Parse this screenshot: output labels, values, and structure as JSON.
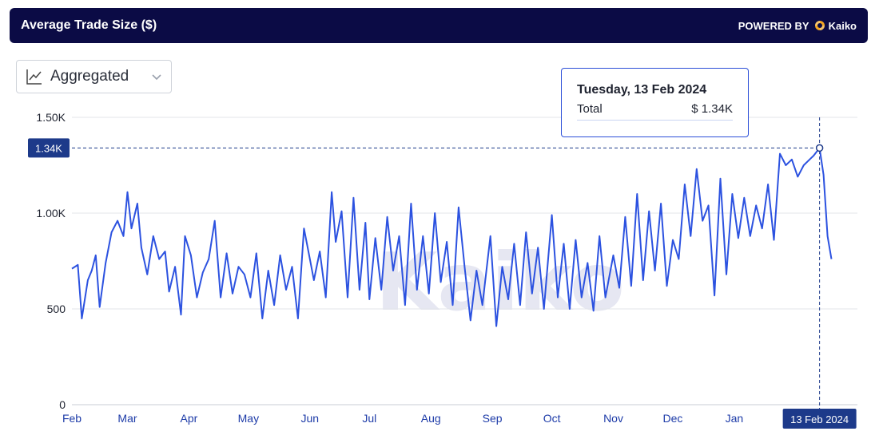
{
  "header": {
    "title": "Average Trade Size ($)",
    "powered_by": "POWERED BY",
    "brand": "Kaiko"
  },
  "selector": {
    "value": "Aggregated"
  },
  "watermark": "Kaiko",
  "tooltip": {
    "date": "Tuesday, 13 Feb 2024",
    "label": "Total",
    "value": "$ 1.34K"
  },
  "colors": {
    "line": "#2c52e0",
    "header_bg": "#0b0b45",
    "badge": "#1d3a8a"
  },
  "chart_data": {
    "type": "line",
    "title": "Average Trade Size ($)",
    "ylim": [
      0,
      1500
    ],
    "y_ticks": [
      0,
      500,
      1000,
      1500
    ],
    "y_tick_labels": [
      "0",
      "500",
      "1.00K",
      "1.50K"
    ],
    "x_ticks": [
      "Feb",
      "Mar",
      "Apr",
      "May",
      "Jun",
      "Jul",
      "Aug",
      "Sep",
      "Oct",
      "Nov",
      "Dec",
      "Jan"
    ],
    "x_range": [
      "2023-02-01",
      "2024-02-20"
    ],
    "crosshair": {
      "date": "2024-02-13",
      "value": 1340,
      "y_label": "1.34K",
      "x_label": "13 Feb 2024"
    },
    "grid": true,
    "series": [
      {
        "name": "Total",
        "points": [
          [
            "2023-02-01",
            710
          ],
          [
            "2023-02-04",
            730
          ],
          [
            "2023-02-06",
            450
          ],
          [
            "2023-02-09",
            650
          ],
          [
            "2023-02-11",
            700
          ],
          [
            "2023-02-13",
            780
          ],
          [
            "2023-02-15",
            510
          ],
          [
            "2023-02-18",
            740
          ],
          [
            "2023-02-21",
            900
          ],
          [
            "2023-02-24",
            960
          ],
          [
            "2023-02-27",
            880
          ],
          [
            "2023-03-01",
            1110
          ],
          [
            "2023-03-03",
            920
          ],
          [
            "2023-03-06",
            1050
          ],
          [
            "2023-03-08",
            820
          ],
          [
            "2023-03-11",
            680
          ],
          [
            "2023-03-14",
            880
          ],
          [
            "2023-03-17",
            760
          ],
          [
            "2023-03-20",
            800
          ],
          [
            "2023-03-22",
            590
          ],
          [
            "2023-03-25",
            720
          ],
          [
            "2023-03-28",
            470
          ],
          [
            "2023-03-30",
            880
          ],
          [
            "2023-04-02",
            780
          ],
          [
            "2023-04-05",
            560
          ],
          [
            "2023-04-08",
            690
          ],
          [
            "2023-04-11",
            760
          ],
          [
            "2023-04-14",
            960
          ],
          [
            "2023-04-17",
            560
          ],
          [
            "2023-04-20",
            790
          ],
          [
            "2023-04-23",
            580
          ],
          [
            "2023-04-26",
            720
          ],
          [
            "2023-04-29",
            680
          ],
          [
            "2023-05-02",
            560
          ],
          [
            "2023-05-05",
            790
          ],
          [
            "2023-05-08",
            450
          ],
          [
            "2023-05-11",
            700
          ],
          [
            "2023-05-14",
            520
          ],
          [
            "2023-05-17",
            780
          ],
          [
            "2023-05-20",
            600
          ],
          [
            "2023-05-23",
            720
          ],
          [
            "2023-05-26",
            450
          ],
          [
            "2023-05-29",
            920
          ],
          [
            "2023-06-01",
            760
          ],
          [
            "2023-06-03",
            650
          ],
          [
            "2023-06-06",
            800
          ],
          [
            "2023-06-09",
            560
          ],
          [
            "2023-06-12",
            1110
          ],
          [
            "2023-06-14",
            850
          ],
          [
            "2023-06-17",
            1010
          ],
          [
            "2023-06-20",
            560
          ],
          [
            "2023-06-23",
            1080
          ],
          [
            "2023-06-26",
            600
          ],
          [
            "2023-06-29",
            950
          ],
          [
            "2023-07-01",
            550
          ],
          [
            "2023-07-04",
            870
          ],
          [
            "2023-07-07",
            600
          ],
          [
            "2023-07-10",
            980
          ],
          [
            "2023-07-13",
            700
          ],
          [
            "2023-07-16",
            880
          ],
          [
            "2023-07-19",
            520
          ],
          [
            "2023-07-22",
            1050
          ],
          [
            "2023-07-25",
            600
          ],
          [
            "2023-07-28",
            880
          ],
          [
            "2023-07-31",
            580
          ],
          [
            "2023-08-03",
            1000
          ],
          [
            "2023-08-06",
            640
          ],
          [
            "2023-08-09",
            850
          ],
          [
            "2023-08-12",
            520
          ],
          [
            "2023-08-15",
            1030
          ],
          [
            "2023-08-18",
            720
          ],
          [
            "2023-08-21",
            440
          ],
          [
            "2023-08-24",
            700
          ],
          [
            "2023-08-27",
            520
          ],
          [
            "2023-08-31",
            880
          ],
          [
            "2023-09-03",
            410
          ],
          [
            "2023-09-06",
            720
          ],
          [
            "2023-09-09",
            550
          ],
          [
            "2023-09-12",
            840
          ],
          [
            "2023-09-15",
            520
          ],
          [
            "2023-09-18",
            900
          ],
          [
            "2023-09-21",
            580
          ],
          [
            "2023-09-24",
            820
          ],
          [
            "2023-09-27",
            500
          ],
          [
            "2023-10-01",
            990
          ],
          [
            "2023-10-04",
            560
          ],
          [
            "2023-10-07",
            840
          ],
          [
            "2023-10-10",
            500
          ],
          [
            "2023-10-13",
            860
          ],
          [
            "2023-10-16",
            560
          ],
          [
            "2023-10-19",
            740
          ],
          [
            "2023-10-22",
            490
          ],
          [
            "2023-10-25",
            880
          ],
          [
            "2023-10-28",
            560
          ],
          [
            "2023-11-01",
            780
          ],
          [
            "2023-11-04",
            610
          ],
          [
            "2023-11-07",
            980
          ],
          [
            "2023-11-10",
            620
          ],
          [
            "2023-11-13",
            1100
          ],
          [
            "2023-11-16",
            650
          ],
          [
            "2023-11-19",
            1010
          ],
          [
            "2023-11-22",
            700
          ],
          [
            "2023-11-25",
            1050
          ],
          [
            "2023-11-28",
            620
          ],
          [
            "2023-12-01",
            860
          ],
          [
            "2023-12-04",
            760
          ],
          [
            "2023-12-07",
            1150
          ],
          [
            "2023-12-10",
            880
          ],
          [
            "2023-12-13",
            1230
          ],
          [
            "2023-12-16",
            960
          ],
          [
            "2023-12-19",
            1040
          ],
          [
            "2023-12-22",
            570
          ],
          [
            "2023-12-25",
            1180
          ],
          [
            "2023-12-28",
            680
          ],
          [
            "2023-12-31",
            1100
          ],
          [
            "2024-01-03",
            870
          ],
          [
            "2024-01-06",
            1080
          ],
          [
            "2024-01-09",
            880
          ],
          [
            "2024-01-12",
            1040
          ],
          [
            "2024-01-15",
            920
          ],
          [
            "2024-01-18",
            1150
          ],
          [
            "2024-01-21",
            860
          ],
          [
            "2024-01-24",
            1310
          ],
          [
            "2024-01-27",
            1250
          ],
          [
            "2024-01-30",
            1280
          ],
          [
            "2024-02-02",
            1190
          ],
          [
            "2024-02-05",
            1250
          ],
          [
            "2024-02-08",
            1280
          ],
          [
            "2024-02-10",
            1300
          ],
          [
            "2024-02-13",
            1340
          ],
          [
            "2024-02-15",
            1200
          ],
          [
            "2024-02-17",
            880
          ],
          [
            "2024-02-19",
            760
          ]
        ]
      }
    ]
  }
}
